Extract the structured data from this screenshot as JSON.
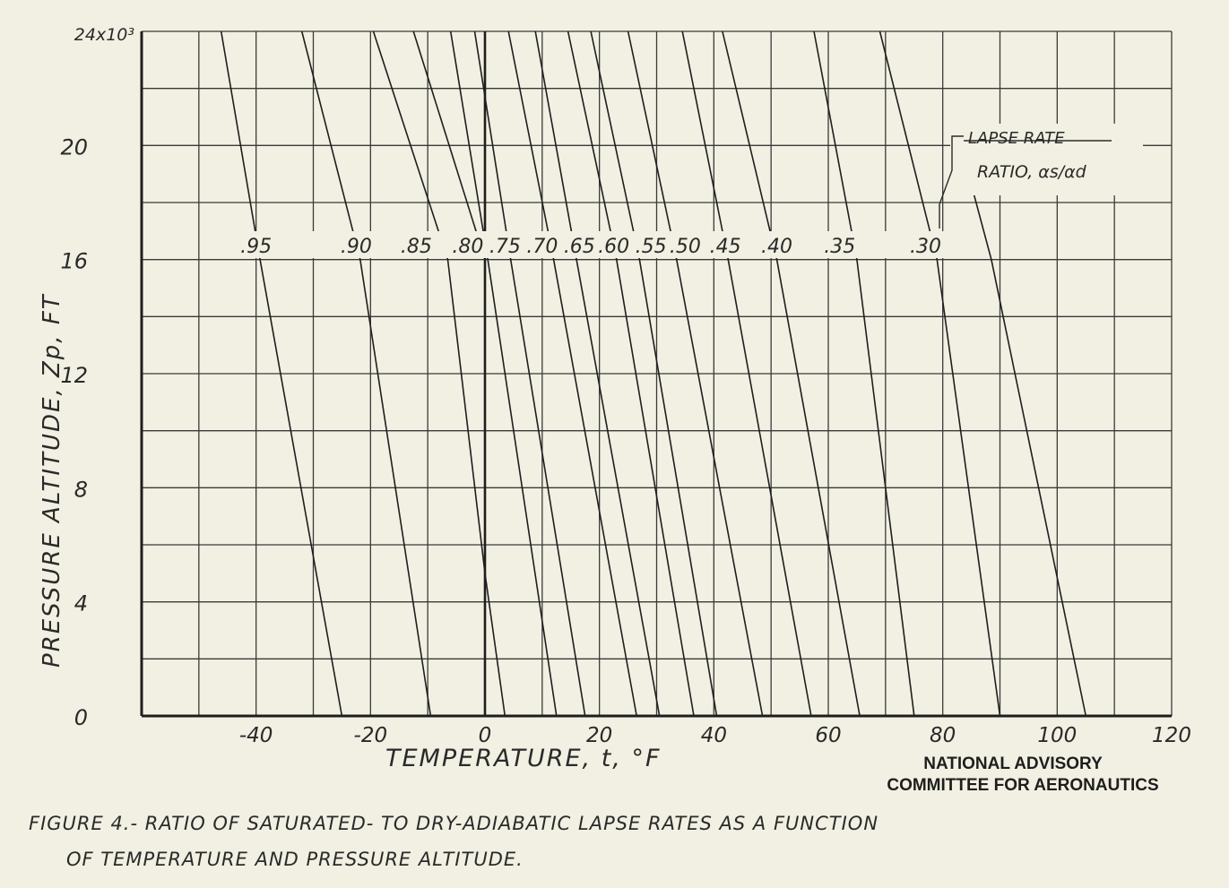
{
  "chart_data": {
    "type": "line",
    "xlabel": "TEMPERATURE, t, °F",
    "ylabel": "PRESSURE ALTITUDE, Zp, FT",
    "xlim": [
      -60,
      120
    ],
    "ylim": [
      0,
      24000
    ],
    "x_ticks": [
      -40,
      -20,
      0,
      20,
      40,
      60,
      80,
      100,
      120
    ],
    "x_tick_labels": [
      "-40",
      "-20",
      "0",
      "20",
      "40",
      "60",
      "80",
      "100",
      "120"
    ],
    "y_ticks": [
      0,
      4000,
      8000,
      12000,
      16000,
      20000,
      24000
    ],
    "y_tick_labels": [
      "0",
      "4",
      "8",
      "12",
      "16",
      "20",
      "24x10³"
    ],
    "grid": true,
    "annotation": "LAPSE RATE RATIO, αs/αd",
    "series": [
      {
        "name": ".95",
        "x": [
          -25,
          -39.3,
          -46.1
        ],
        "y": [
          0,
          16000,
          24000
        ]
      },
      {
        "name": ".90",
        "x": [
          -9.5,
          -21.8,
          -32
        ],
        "y": [
          0,
          16000,
          24000
        ]
      },
      {
        "name": ".85",
        "x": [
          -6.5,
          -19.5
        ],
        "y": [
          16000,
          24000
        ]
      },
      {
        "name": ".80",
        "x": [
          3.5,
          0,
          -6.5
        ],
        "y": [
          0,
          5000,
          16000
        ]
      },
      {
        "name": ".80",
        "x": [
          0,
          -12.5
        ],
        "y": [
          16000,
          24000
        ]
      },
      {
        "name": ".75",
        "x": [
          12.5,
          0.5,
          -6
        ],
        "y": [
          0,
          16000,
          24000
        ]
      },
      {
        "name": ".70",
        "x": [
          17.5,
          4.5,
          -1.8
        ],
        "y": [
          0,
          16000,
          24000
        ]
      },
      {
        "name": ".65",
        "x": [
          26.5,
          12,
          4.1
        ],
        "y": [
          0,
          16000,
          24000
        ]
      },
      {
        "name": ".60",
        "x": [
          30.5,
          16,
          8.8
        ],
        "y": [
          0,
          16000,
          24000
        ]
      },
      {
        "name": ".55",
        "x": [
          36.5,
          23,
          14.5
        ],
        "y": [
          0,
          16000,
          24000
        ]
      },
      {
        "name": ".50",
        "x": [
          40.5,
          27,
          18.5
        ],
        "y": [
          0,
          16000,
          24000
        ]
      },
      {
        "name": ".45",
        "x": [
          48.5,
          33.5,
          25
        ],
        "y": [
          0,
          16000,
          24000
        ]
      },
      {
        "name": ".40",
        "x": [
          57,
          42.5,
          34.5
        ],
        "y": [
          0,
          16000,
          24000
        ]
      },
      {
        "name": ".35",
        "x": [
          65.5,
          51,
          41.5
        ],
        "y": [
          0,
          16000,
          24000
        ]
      },
      {
        "name": ".30",
        "x": [
          75,
          65,
          57.5
        ],
        "y": [
          0,
          16000,
          24000
        ]
      },
      {
        "name": ".30",
        "x": [
          90,
          79,
          69
        ],
        "y": [
          0,
          16000,
          24000
        ]
      },
      {
        "name": ".30",
        "x": [
          105,
          88.5,
          82.5
        ],
        "y": [
          0,
          16000,
          20500
        ]
      }
    ]
  },
  "legend_labels": [
    ".95",
    ".90",
    ".85",
    ".80",
    ".75",
    ".70",
    ".65",
    ".60",
    ".55",
    ".50",
    ".45",
    ".40",
    ".35",
    ".30"
  ],
  "annotation": {
    "line1": "LAPSE RATE",
    "line2": "RATIO, αs/αd"
  },
  "agency": {
    "line1": "NATIONAL ADVISORY",
    "line2": "COMMITTEE FOR AERONAUTICS"
  },
  "caption": {
    "line1": "FIGURE 4.- RATIO OF SATURATED- TO DRY-ADIABATIC LAPSE RATES AS A FUNCTION",
    "line2": "OF TEMPERATURE AND PRESSURE ALTITUDE."
  },
  "colors": {
    "paper": "#f1f0e2",
    "ink": "#1e1e1e"
  }
}
